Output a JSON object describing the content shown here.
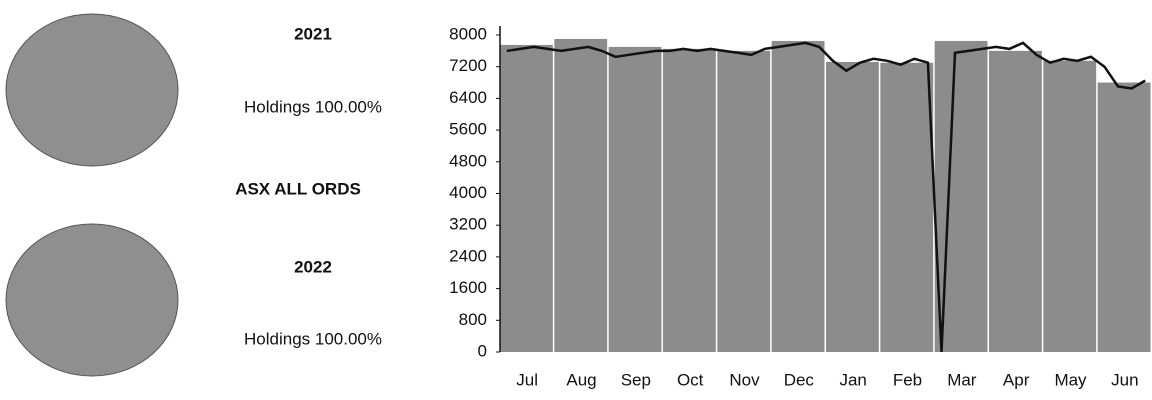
{
  "chart_data": [
    {
      "type": "pie",
      "title": "2021",
      "values": [
        100
      ],
      "value_labels": [
        "Holdings 100.00%"
      ],
      "color": "#8f8f8f"
    },
    {
      "type": "pie",
      "title": "2022",
      "values": [
        100
      ],
      "value_labels": [
        "Holdings 100.00%"
      ],
      "color": "#8f8f8f"
    },
    {
      "type": "bar",
      "title": "ASX ALL ORDS",
      "categories": [
        "Jul",
        "Aug",
        "Sep",
        "Oct",
        "Nov",
        "Dec",
        "Jan",
        "Feb",
        "Mar",
        "Apr",
        "May",
        "Jun"
      ],
      "values": [
        7750,
        7900,
        7700,
        7650,
        7600,
        7850,
        7320,
        7300,
        7850,
        7600,
        7350,
        6800
      ],
      "color": "#8c8c8c",
      "line": {
        "color": "#111111",
        "values": [
          7600,
          7650,
          7700,
          7650,
          7600,
          7650,
          7700,
          7600,
          7450,
          7500,
          7550,
          7600,
          7600,
          7650,
          7600,
          7650,
          7600,
          7550,
          7500,
          7650,
          7700,
          7750,
          7800,
          7700,
          7350,
          7100,
          7300,
          7400,
          7350,
          7250,
          7400,
          7300,
          0,
          7550,
          7600,
          7650,
          7700,
          7650,
          7800,
          7500,
          7300,
          7400,
          7350,
          7450,
          7200,
          6700,
          6650,
          6850
        ]
      },
      "ylim": [
        0,
        8000
      ],
      "yticks": [
        0,
        800,
        1600,
        2400,
        3200,
        4000,
        4800,
        5600,
        6400,
        7200,
        8000
      ]
    }
  ]
}
